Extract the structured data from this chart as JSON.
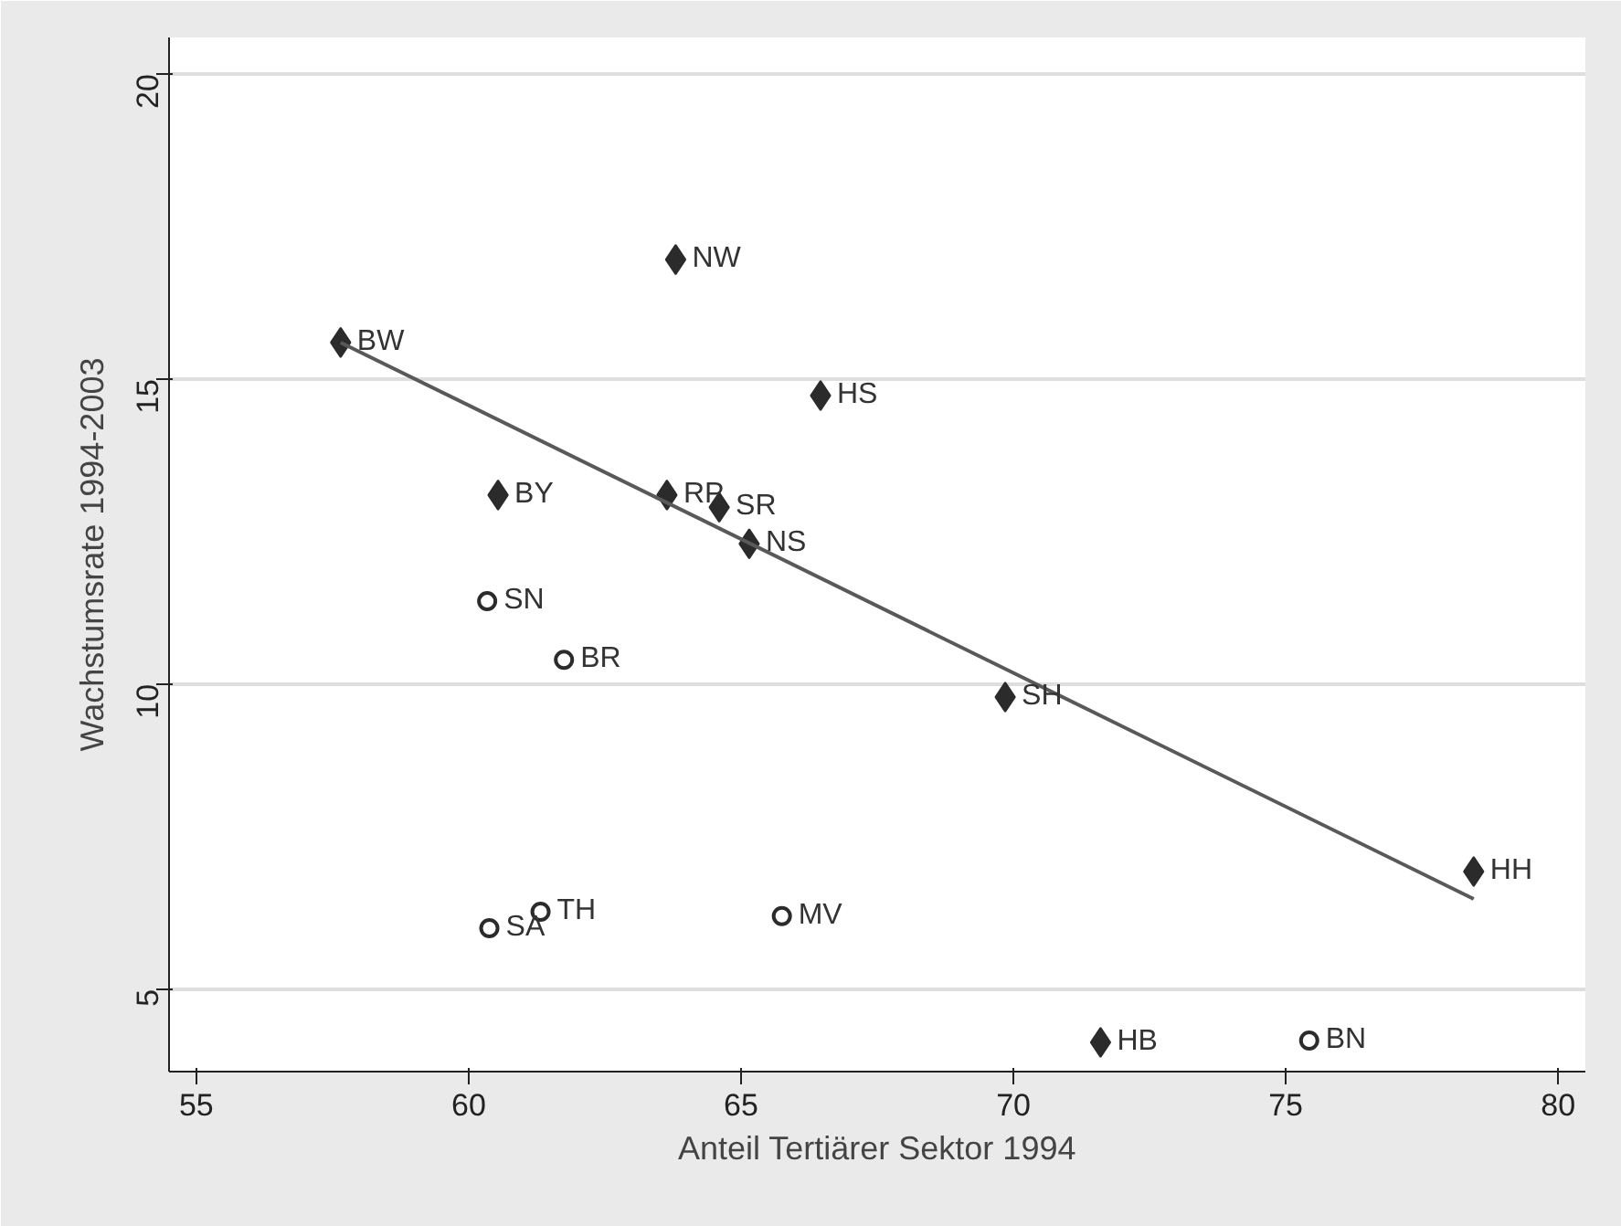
{
  "chart_data": {
    "type": "scatter",
    "xlabel": "Anteil Tertiärer Sektor 1994",
    "ylabel": "Wachstumsrate 1994-2003",
    "xlim": [
      54.5,
      80.5
    ],
    "ylim": [
      3.65,
      20.6
    ],
    "xticks": [
      55,
      60,
      65,
      70,
      75,
      80
    ],
    "yticks": [
      5,
      10,
      15,
      20
    ],
    "grid": "y",
    "series": [
      {
        "marker": "diamond",
        "color": "#2b2b2b",
        "x": [
          57.65,
          63.8,
          66.46,
          60.54,
          63.64,
          64.6,
          65.15,
          69.85,
          78.45,
          71.6
        ],
        "values": [
          15.6,
          16.96,
          14.73,
          13.1,
          13.1,
          12.9,
          12.3,
          9.79,
          6.93,
          4.13
        ],
        "value_labels": [
          "BW",
          "NW",
          "HS",
          "BY",
          "RP",
          "SR",
          "NS",
          "SH",
          "HH",
          "HB"
        ]
      },
      {
        "marker": "hollow_circle",
        "color": "#2b2b2b",
        "x": [
          60.34,
          61.75,
          61.32,
          60.38,
          65.75,
          75.43
        ],
        "values": [
          11.36,
          10.4,
          6.27,
          6.0,
          6.2,
          4.16
        ],
        "value_labels": [
          "SN",
          "BR",
          "TH",
          "SA",
          "MV",
          "BN"
        ]
      },
      {
        "type": "line",
        "color": "#595959",
        "x": [
          57.65,
          78.45
        ],
        "values": [
          15.6,
          6.48
        ]
      }
    ]
  }
}
